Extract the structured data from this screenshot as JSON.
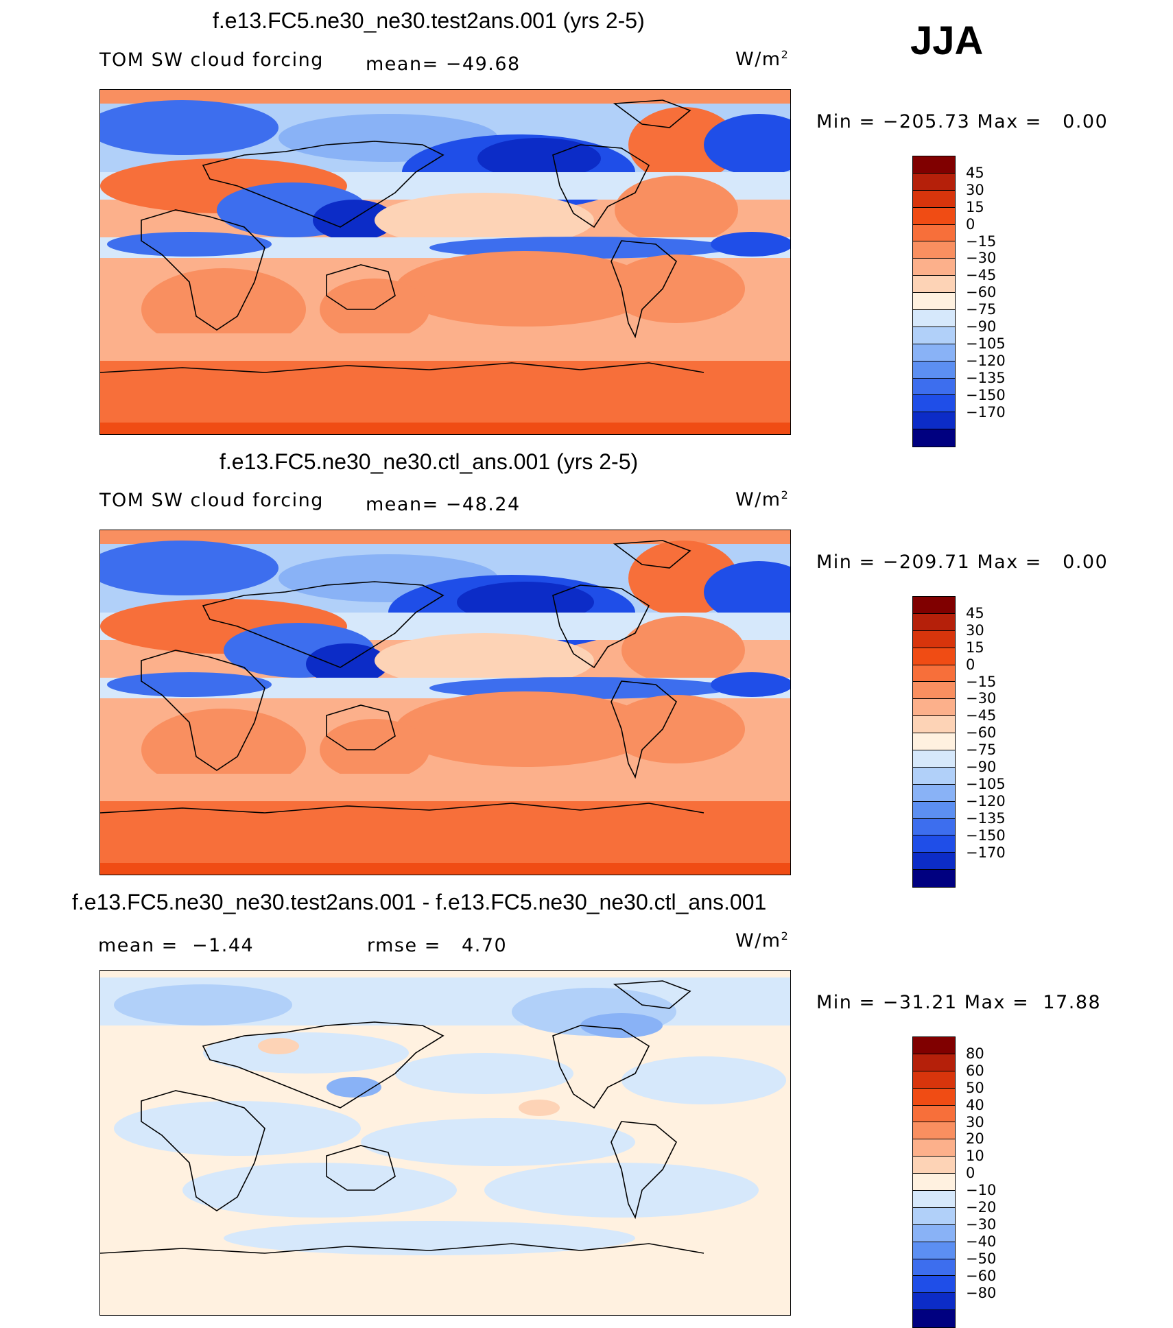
{
  "season_label": "JJA",
  "panels": [
    {
      "title": "f.e13.FC5.ne30_ne30.test2ans.001 (yrs 2-5)",
      "variable": "TOM SW cloud forcing",
      "mean_text": "mean= −49.68",
      "units_base": "W/m",
      "units_exp": "2",
      "minmax_text": "Min = −205.73 Max =   0.00",
      "colorbar": {
        "labels": [
          "45",
          "30",
          "15",
          "0",
          "−15",
          "−30",
          "−45",
          "−60",
          "−75",
          "−90",
          "−105",
          "−120",
          "−135",
          "−150",
          "−170"
        ],
        "colors": [
          "#800000",
          "#b5200a",
          "#d8350c",
          "#f04c14",
          "#f76f3a",
          "#f98f60",
          "#fcb08b",
          "#fdd3b6",
          "#fff1e0",
          "#d6e8fb",
          "#b1d0f9",
          "#89b2f6",
          "#5c8ff2",
          "#3d6eee",
          "#1f4ee8",
          "#0c2cc7",
          "#000080"
        ]
      },
      "chart_data": {
        "type": "heatmap",
        "map": "global latitude-longitude field",
        "title": "f.e13.FC5.ne30_ne30.test2ans.001 (yrs 2-5)",
        "variable": "TOM SW cloud forcing",
        "units": "W/m2",
        "mean": -49.68,
        "min": -205.73,
        "max": 0.0,
        "contour_levels": [
          45,
          30,
          15,
          0,
          -15,
          -30,
          -45,
          -60,
          -75,
          -90,
          -105,
          -120,
          -135,
          -150,
          -170
        ]
      }
    },
    {
      "title": "f.e13.FC5.ne30_ne30.ctl_ans.001 (yrs 2-5)",
      "variable": "TOM SW cloud forcing",
      "mean_text": "mean= −48.24",
      "units_base": "W/m",
      "units_exp": "2",
      "minmax_text": "Min = −209.71 Max =   0.00",
      "colorbar": {
        "labels": [
          "45",
          "30",
          "15",
          "0",
          "−15",
          "−30",
          "−45",
          "−60",
          "−75",
          "−90",
          "−105",
          "−120",
          "−135",
          "−150",
          "−170"
        ],
        "colors": [
          "#800000",
          "#b5200a",
          "#d8350c",
          "#f04c14",
          "#f76f3a",
          "#f98f60",
          "#fcb08b",
          "#fdd3b6",
          "#fff1e0",
          "#d6e8fb",
          "#b1d0f9",
          "#89b2f6",
          "#5c8ff2",
          "#3d6eee",
          "#1f4ee8",
          "#0c2cc7",
          "#000080"
        ]
      },
      "chart_data": {
        "type": "heatmap",
        "map": "global latitude-longitude field",
        "title": "f.e13.FC5.ne30_ne30.ctl_ans.001 (yrs 2-5)",
        "variable": "TOM SW cloud forcing",
        "units": "W/m2",
        "mean": -48.24,
        "min": -209.71,
        "max": 0.0,
        "contour_levels": [
          45,
          30,
          15,
          0,
          -15,
          -30,
          -45,
          -60,
          -75,
          -90,
          -105,
          -120,
          -135,
          -150,
          -170
        ]
      }
    },
    {
      "title": "f.e13.FC5.ne30_ne30.test2ans.001 - f.e13.FC5.ne30_ne30.ctl_ans.001",
      "mean_text": "mean =  −1.44",
      "rmse_text": "rmse =   4.70",
      "units_base": "W/m",
      "units_exp": "2",
      "minmax_text": "Min = −31.21 Max =  17.88",
      "colorbar": {
        "labels": [
          "80",
          "60",
          "50",
          "40",
          "30",
          "20",
          "10",
          "0",
          "−10",
          "−20",
          "−30",
          "−40",
          "−50",
          "−60",
          "−80"
        ],
        "colors": [
          "#800000",
          "#b5200a",
          "#d8350c",
          "#f04c14",
          "#f76f3a",
          "#f98f60",
          "#fcb08b",
          "#fdd3b6",
          "#fff1e0",
          "#d6e8fb",
          "#b1d0f9",
          "#89b2f6",
          "#5c8ff2",
          "#3d6eee",
          "#1f4ee8",
          "#0c2cc7",
          "#000080"
        ]
      },
      "chart_data": {
        "type": "heatmap",
        "map": "global latitude-longitude difference field",
        "title": "f.e13.FC5.ne30_ne30.test2ans.001 - f.e13.FC5.ne30_ne30.ctl_ans.001",
        "units": "W/m2",
        "mean": -1.44,
        "rmse": 4.7,
        "min": -31.21,
        "max": 17.88,
        "contour_levels": [
          80,
          60,
          50,
          40,
          30,
          20,
          10,
          0,
          -10,
          -20,
          -30,
          -40,
          -50,
          -60,
          -80
        ]
      }
    }
  ]
}
